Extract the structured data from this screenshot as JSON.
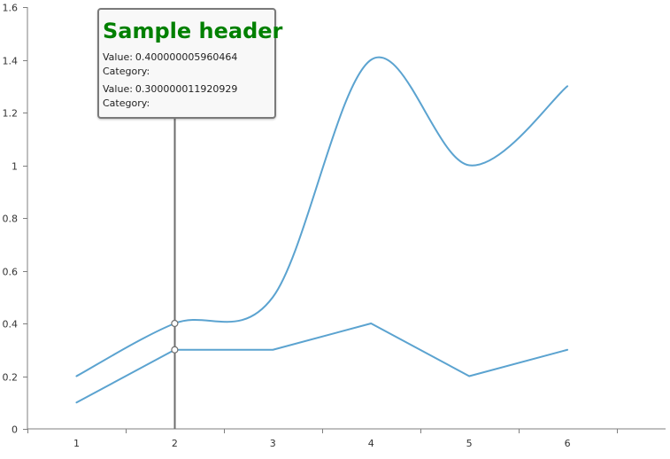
{
  "chart_data": {
    "type": "line",
    "x": [
      1,
      2,
      3,
      4,
      5,
      6
    ],
    "xlim": [
      0.5,
      7
    ],
    "ylim": [
      0,
      1.6
    ],
    "y_ticks": [
      "0",
      "0.2",
      "0.4",
      "0.6",
      "0.8",
      "1",
      "1.2",
      "1.4",
      "1.6"
    ],
    "x_ticks": [
      "1",
      "2",
      "3",
      "4",
      "5",
      "6"
    ],
    "series": [
      {
        "values": [
          0.2,
          0.4,
          0.5,
          1.4,
          1.0,
          1.3
        ],
        "smooth": true,
        "color": "#5ba3d0"
      },
      {
        "values": [
          0.1,
          0.3,
          0.3,
          0.4,
          0.2,
          0.3
        ],
        "smooth": false,
        "color": "#5ba3d0"
      }
    ],
    "grid": false,
    "crosshair_x": 2
  },
  "tooltip": {
    "header": "Sample header",
    "header_color": "#008000",
    "items": [
      {
        "value_label": "Value:",
        "value": "0.400000005960464",
        "category_label": "Category:"
      },
      {
        "value_label": "Value:",
        "value": "0.300000011920929",
        "category_label": "Category:"
      }
    ]
  }
}
